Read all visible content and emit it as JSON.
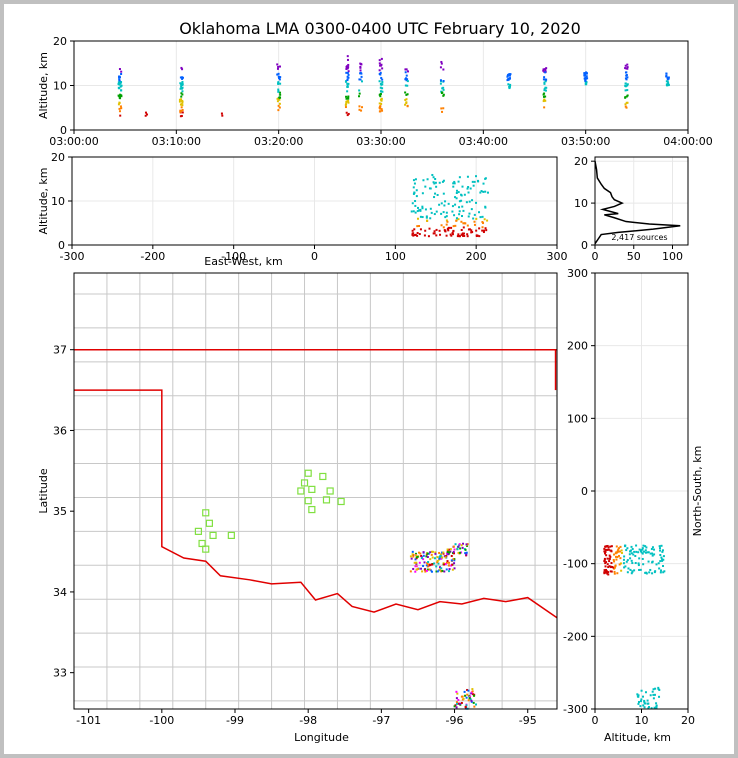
{
  "title": "Oklahoma LMA 0300-0400 UTC February 10, 2020",
  "colors": {
    "background": "#c0c0c0",
    "panel": "#ffffff",
    "state_border": "#e00000",
    "county_lines": "#c8c8c8",
    "stations": "#80e040",
    "grid": "#e8e8e8"
  },
  "chart_data": [
    {
      "id": "time-height",
      "type": "scatter",
      "title": "",
      "xlabel": "",
      "ylabel": "Altitude, km",
      "x_ticks": [
        "03:00:00",
        "03:10:00",
        "03:20:00",
        "03:30:00",
        "03:40:00",
        "03:50:00",
        "04:00:00"
      ],
      "xlim_minutes": [
        0,
        60
      ],
      "ylim": [
        0,
        20
      ],
      "y_ticks": [
        0,
        10,
        20
      ],
      "clusters": [
        {
          "t": 4.5,
          "alt": [
            3,
            14
          ],
          "n": 40
        },
        {
          "t": 7,
          "alt": [
            3,
            4
          ],
          "n": 3
        },
        {
          "t": 10.5,
          "alt": [
            3,
            14
          ],
          "n": 40
        },
        {
          "t": 14.5,
          "alt": [
            3,
            4
          ],
          "n": 2
        },
        {
          "t": 20,
          "alt": [
            4,
            15
          ],
          "n": 30
        },
        {
          "t": 26.7,
          "alt": [
            3,
            17
          ],
          "n": 40
        },
        {
          "t": 28,
          "alt": [
            4,
            15
          ],
          "n": 20
        },
        {
          "t": 30,
          "alt": [
            4,
            17
          ],
          "n": 40
        },
        {
          "t": 32.5,
          "alt": [
            4,
            14
          ],
          "n": 25
        },
        {
          "t": 36,
          "alt": [
            4,
            16
          ],
          "n": 20
        },
        {
          "t": 42.5,
          "alt": [
            9,
            13
          ],
          "n": 18
        },
        {
          "t": 46,
          "alt": [
            5,
            14
          ],
          "n": 30
        },
        {
          "t": 50,
          "alt": [
            10,
            13
          ],
          "n": 25
        },
        {
          "t": 54,
          "alt": [
            5,
            15
          ],
          "n": 30
        },
        {
          "t": 58,
          "alt": [
            10,
            13
          ],
          "n": 20
        }
      ]
    },
    {
      "id": "east-west-altitude",
      "type": "scatter",
      "xlabel": "East-West, km",
      "ylabel": "Altitude, km",
      "xlim": [
        -300,
        300
      ],
      "ylim": [
        0,
        20
      ],
      "x_ticks": [
        -300,
        -200,
        -100,
        0,
        100,
        200,
        300
      ],
      "y_ticks": [
        0,
        10,
        20
      ],
      "clusters": [
        {
          "x": [
            120,
            215
          ],
          "alt": [
            2,
            16
          ],
          "n": 220
        }
      ]
    },
    {
      "id": "altitude-histogram",
      "type": "line",
      "xlim": [
        0,
        120
      ],
      "ylim": [
        0,
        21
      ],
      "x_ticks": [
        0,
        50,
        100
      ],
      "y_ticks": [
        0,
        10,
        20
      ],
      "annotation": "2,417 sources",
      "profile": [
        [
          0,
          0.3
        ],
        [
          8,
          2.5
        ],
        [
          30,
          3.0
        ],
        [
          75,
          3.8
        ],
        [
          110,
          4.6
        ],
        [
          70,
          5.0
        ],
        [
          40,
          5.6
        ],
        [
          25,
          6.5
        ],
        [
          12,
          7.2
        ],
        [
          30,
          7.5
        ],
        [
          20,
          8.0
        ],
        [
          10,
          8.5
        ],
        [
          25,
          9.2
        ],
        [
          35,
          10.0
        ],
        [
          25,
          10.8
        ],
        [
          22,
          11.5
        ],
        [
          20,
          12.5
        ],
        [
          12,
          13.5
        ],
        [
          8,
          14.5
        ],
        [
          3,
          16.0
        ],
        [
          2,
          18.0
        ],
        [
          0,
          20.0
        ]
      ]
    },
    {
      "id": "plan-view",
      "type": "scatter",
      "xlabel": "Longitude",
      "ylabel": "Latitude",
      "xlim": [
        -101.2,
        -94.6
      ],
      "ylim": [
        32.55,
        37.95
      ],
      "x_ticks": [
        -101,
        -100,
        -99,
        -98,
        -97,
        -96,
        -95
      ],
      "y_ticks": [
        33,
        34,
        35,
        36,
        37
      ],
      "stations": [
        [
          -98.0,
          35.47
        ],
        [
          -97.8,
          35.43
        ],
        [
          -98.05,
          35.35
        ],
        [
          -97.95,
          35.27
        ],
        [
          -98.1,
          35.25
        ],
        [
          -97.7,
          35.25
        ],
        [
          -98.0,
          35.13
        ],
        [
          -97.75,
          35.14
        ],
        [
          -97.55,
          35.12
        ],
        [
          -97.95,
          35.02
        ],
        [
          -99.4,
          34.98
        ],
        [
          -99.35,
          34.85
        ],
        [
          -99.5,
          34.75
        ],
        [
          -99.3,
          34.7
        ],
        [
          -99.05,
          34.7
        ],
        [
          -99.45,
          34.6
        ],
        [
          -99.4,
          34.53
        ]
      ],
      "clusters": [
        {
          "lon": [
            -96.6,
            -96.0
          ],
          "lat": [
            34.25,
            34.5
          ],
          "n": 140
        },
        {
          "lon": [
            -96.1,
            -95.8
          ],
          "lat": [
            34.45,
            34.6
          ],
          "n": 40
        },
        {
          "lon": [
            -96.0,
            -95.7
          ],
          "lat": [
            32.55,
            32.8
          ],
          "n": 50
        }
      ]
    },
    {
      "id": "altitude-north-south",
      "type": "scatter",
      "xlabel": "Altitude, km",
      "ylabel": "North-South, km",
      "xlim": [
        0,
        20
      ],
      "ylim": [
        -300,
        300
      ],
      "x_ticks": [
        0,
        10,
        20
      ],
      "y_ticks": [
        -300,
        -200,
        -100,
        0,
        100,
        200,
        300
      ],
      "clusters": [
        {
          "alt": [
            2,
            15
          ],
          "ns": [
            -115,
            -75
          ],
          "n": 180
        },
        {
          "alt": [
            9,
            14
          ],
          "ns": [
            -300,
            -270
          ],
          "n": 40
        }
      ]
    }
  ]
}
